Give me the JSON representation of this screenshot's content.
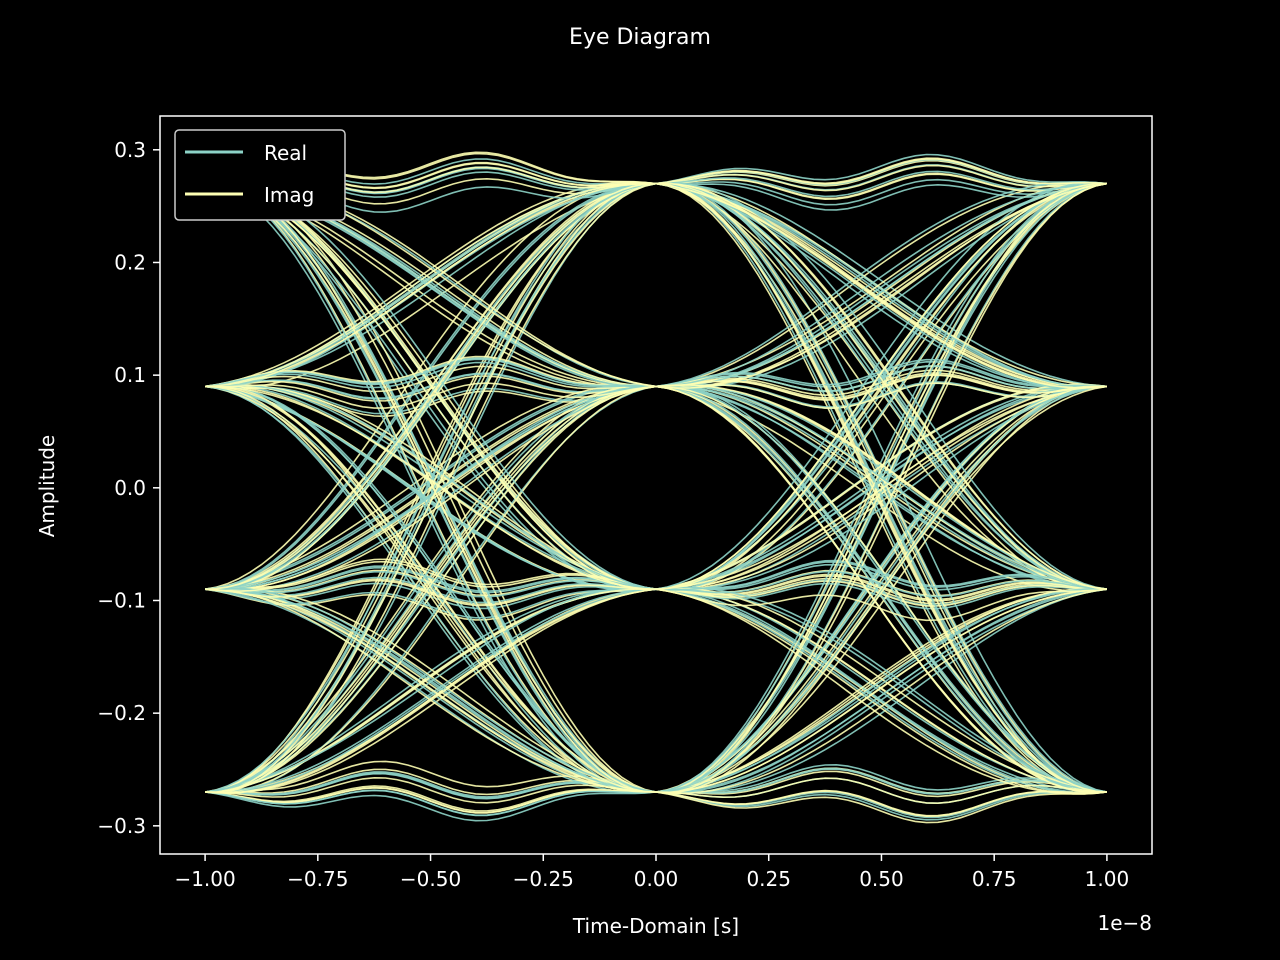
{
  "chart_data": {
    "type": "line",
    "title": "Eye Diagram",
    "xlabel": "Time-Domain [s]",
    "ylabel": "Amplitude",
    "x_offset_text": "1e−8",
    "xlim": [
      -1.1,
      1.1
    ],
    "ylim": [
      -0.325,
      0.33
    ],
    "x_ticks": [
      -1.0,
      -0.75,
      -0.5,
      -0.25,
      0.0,
      0.25,
      0.5,
      0.75,
      1.0
    ],
    "x_tick_labels": [
      "−1.00",
      "−0.75",
      "−0.50",
      "−0.25",
      "0.00",
      "0.25",
      "0.50",
      "0.75",
      "1.00"
    ],
    "y_ticks": [
      -0.3,
      -0.2,
      -0.1,
      0.0,
      0.1,
      0.2,
      0.3
    ],
    "y_tick_labels": [
      "−0.3",
      "−0.2",
      "−0.1",
      "0.0",
      "0.1",
      "0.2",
      "0.3"
    ],
    "symbol_levels": [
      -0.27,
      -0.09,
      0.09,
      0.27
    ],
    "symbol_times": [
      -1.0,
      0.0,
      1.0
    ],
    "grid": false,
    "legend_position": "top-left",
    "series": [
      {
        "name": "Real",
        "color": "#8dd3c7"
      },
      {
        "name": "Imag",
        "color": "#feffb3"
      }
    ],
    "background": "#000000",
    "axes_color": "#ffffff"
  }
}
